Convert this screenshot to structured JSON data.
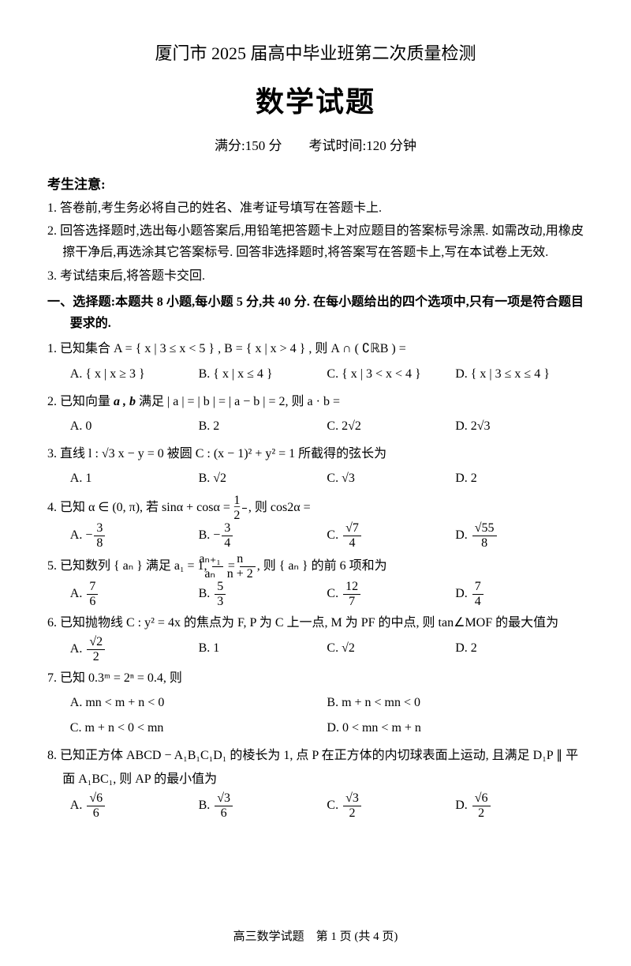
{
  "header": "厦门市 2025 届高中毕业班第二次质量检测",
  "title": "数学试题",
  "meta": "满分:150 分　　考试时间:120 分钟",
  "notice_head": "考生注意:",
  "notices": [
    "1. 答卷前,考生务必将自己的姓名、准考证号填写在答题卡上.",
    "2. 回答选择题时,选出每小题答案后,用铅笔把答题卡上对应题目的答案标号涂黑. 如需改动,用橡皮擦干净后,再选涂其它答案标号. 回答非选择题时,将答案写在答题卡上,写在本试卷上无效.",
    "3. 考试结束后,将答题卡交回."
  ],
  "section1": "一、选择题:本题共 8 小题,每小题 5 分,共 40 分. 在每小题给出的四个选项中,只有一项是符合题目要求的.",
  "q1": {
    "stem": "1. 已知集合 A = { x | 3 ≤ x < 5 } , B = { x | x > 4 } , 则 A ∩ ( ∁ℝB ) =",
    "A": "A.  { x | x ≥ 3 }",
    "B": "B.  { x | x ≤ 4 }",
    "C": "C.  { x | 3 < x < 4 }",
    "D": "D.  { x | 3 ≤ x ≤ 4 }"
  },
  "q2": {
    "stem_pre": "2. 已知向量 ",
    "stem_mid": " 满足 | a | = | b | = | a − b | = 2, 则 a · b =",
    "A": "A. 0",
    "B": "B. 2",
    "C": "C. 2√2",
    "D": "D. 2√3"
  },
  "q3": {
    "stem": "3. 直线 l : √3 x − y = 0 被圆 C : (x − 1)² + y² = 1 所截得的弦长为",
    "A": "A. 1",
    "B": "B. √2",
    "C": "C. √3",
    "D": "D. 2"
  },
  "q4": {
    "stem_pre": "4. 已知 α ∈ (0, π), 若 sinα + cosα = −",
    "stem_post": ", 则 cos2α =",
    "A": "A. −",
    "An": "3",
    "Ad": "8",
    "B": "B. −",
    "Bn": "3",
    "Bd": "4",
    "C": "C. ",
    "Cn": "√7",
    "Cd": "4",
    "D": "D. ",
    "Dn": "√55",
    "Dd": "8",
    "half_n": "1",
    "half_d": "2"
  },
  "q5": {
    "stem_pre": "5. 已知数列 { aₙ } 满足 a₁ = 1, ",
    "stem_mid": " = ",
    "stem_post": ", 则 { aₙ } 的前 6 项和为",
    "f1n": "aₙ₊₁",
    "f1d": "aₙ",
    "f2n": "n",
    "f2d": "n + 2",
    "A": "A. ",
    "An": "7",
    "Ad": "6",
    "B": "B. ",
    "Bn": "5",
    "Bd": "3",
    "C": "C. ",
    "Cn": "12",
    "Cd": "7",
    "D": "D. ",
    "Dn": "7",
    "Dd": "4"
  },
  "q6": {
    "stem": "6. 已知抛物线 C : y² = 4x 的焦点为 F, P 为 C 上一点, M 为 PF 的中点, 则 tan∠MOF 的最大值为",
    "A": "A. ",
    "An": "√2",
    "Ad": "2",
    "B": "B. 1",
    "C": "C. √2",
    "D": "D. 2"
  },
  "q7": {
    "stem": "7. 已知 0.3ᵐ = 2ⁿ = 0.4, 则",
    "A": "A. mn < m + n < 0",
    "B": "B. m + n < mn < 0",
    "C": "C. m + n < 0 < mn",
    "D": "D. 0 < mn < m + n"
  },
  "q8": {
    "stem": "8. 已知正方体 ABCD − A₁B₁C₁D₁ 的棱长为 1, 点 P 在正方体的内切球表面上运动, 且满足 D₁P ∥ 平面 A₁BC₁, 则 AP 的最小值为",
    "A": "A. ",
    "An": "√6",
    "Ad": "6",
    "B": "B. ",
    "Bn": "√3",
    "Bd": "6",
    "C": "C. ",
    "Cn": "√3",
    "Cd": "2",
    "D": "D. ",
    "Dn": "√6",
    "Dd": "2"
  },
  "footer": "高三数学试题　第 1 页 (共 4 页)",
  "ab_bold": "a , b"
}
